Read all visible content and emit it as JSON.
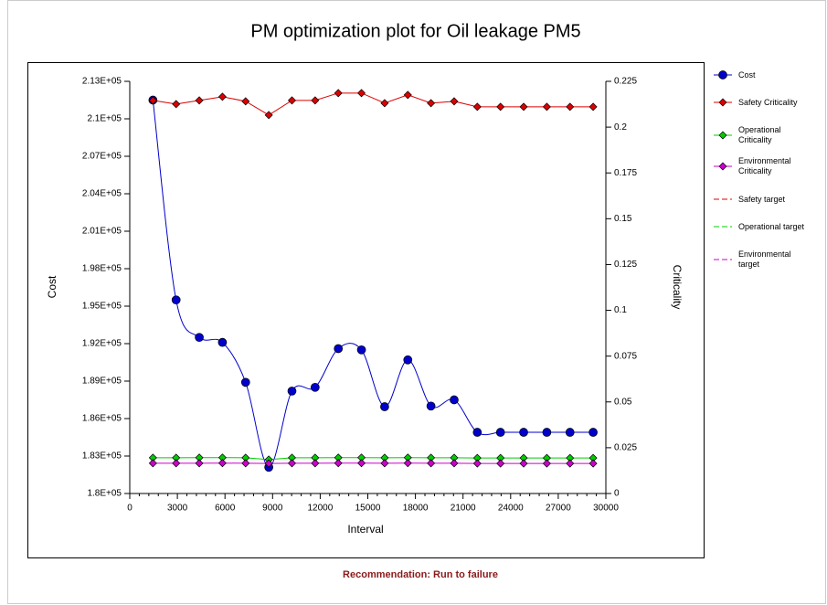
{
  "chart_data": {
    "type": "line",
    "title": "PM optimization plot for Oil leakage PM5",
    "xlabel": "Interval",
    "ylabel": "Cost",
    "y2label": "Criticality",
    "footer": "Recommendation: Run to failure",
    "x": [
      1460,
      2920,
      4380,
      5840,
      7300,
      8760,
      10220,
      11680,
      13140,
      14600,
      16060,
      17520,
      18980,
      20440,
      21900,
      23360,
      24820,
      26280,
      27740,
      29200
    ],
    "xlim": [
      0,
      30000
    ],
    "xticks": [
      0,
      3000,
      6000,
      9000,
      12000,
      15000,
      18000,
      21000,
      24000,
      27000,
      30000
    ],
    "ylim": [
      180000,
      213000
    ],
    "yticks": [
      {
        "value": 180000,
        "label": "1.8E+05"
      },
      {
        "value": 183000,
        "label": "1.83E+05"
      },
      {
        "value": 186000,
        "label": "1.86E+05"
      },
      {
        "value": 189000,
        "label": "1.89E+05"
      },
      {
        "value": 192000,
        "label": "1.92E+05"
      },
      {
        "value": 195000,
        "label": "1.95E+05"
      },
      {
        "value": 198000,
        "label": "1.98E+05"
      },
      {
        "value": 201000,
        "label": "2.01E+05"
      },
      {
        "value": 204000,
        "label": "2.04E+05"
      },
      {
        "value": 207000,
        "label": "2.07E+05"
      },
      {
        "value": 210000,
        "label": "2.1E+05"
      },
      {
        "value": 213000,
        "label": "2.13E+05"
      }
    ],
    "y2lim": [
      0,
      0.225
    ],
    "y2ticks": [
      0,
      0.025,
      0.05,
      0.075,
      0.1,
      0.125,
      0.15,
      0.175,
      0.2,
      0.225
    ],
    "series": [
      {
        "name": "Cost",
        "color": "#0000cc",
        "marker": "circle",
        "smooth": true,
        "values": [
          211500,
          195500,
          192500,
          192100,
          188900,
          182100,
          188200,
          188500,
          191600,
          191500,
          186950,
          190700,
          187000,
          187500,
          184900,
          184900,
          184900,
          184900,
          184900,
          184900
        ]
      },
      {
        "name": "Safety Criticality",
        "color": "#dd0000",
        "marker": "diamond",
        "axis": "y2",
        "values": [
          0.2146,
          0.2126,
          0.2146,
          0.2166,
          0.2141,
          0.2066,
          0.2146,
          0.2146,
          0.2186,
          0.2186,
          0.2131,
          0.2176,
          0.2131,
          0.2141,
          0.2111,
          0.2111,
          0.2111,
          0.2111,
          0.2111,
          0.2111
        ]
      },
      {
        "name": "Operational Criticality",
        "color": "#00cc00",
        "marker": "diamond",
        "axis": "y2",
        "values": [
          0.0195,
          0.0195,
          0.0196,
          0.0196,
          0.0195,
          0.0185,
          0.0195,
          0.0195,
          0.0196,
          0.0196,
          0.0195,
          0.0196,
          0.0195,
          0.0195,
          0.0194,
          0.0194,
          0.0194,
          0.0194,
          0.0194,
          0.0194
        ]
      },
      {
        "name": "Environmental Criticality",
        "color": "#cc00cc",
        "marker": "diamond",
        "axis": "y2",
        "values": [
          0.0165,
          0.0165,
          0.0165,
          0.0166,
          0.0165,
          0.0164,
          0.0165,
          0.0165,
          0.0166,
          0.0166,
          0.0165,
          0.0166,
          0.0165,
          0.0165,
          0.0164,
          0.0164,
          0.0164,
          0.0164,
          0.0164,
          0.0164
        ]
      },
      {
        "name": "Safety target",
        "color": "#dd0000",
        "dashed": true
      },
      {
        "name": "Operational target",
        "color": "#00cc00",
        "dashed": true
      },
      {
        "name": "Environmental target",
        "color": "#cc00cc",
        "dashed": true
      }
    ]
  }
}
